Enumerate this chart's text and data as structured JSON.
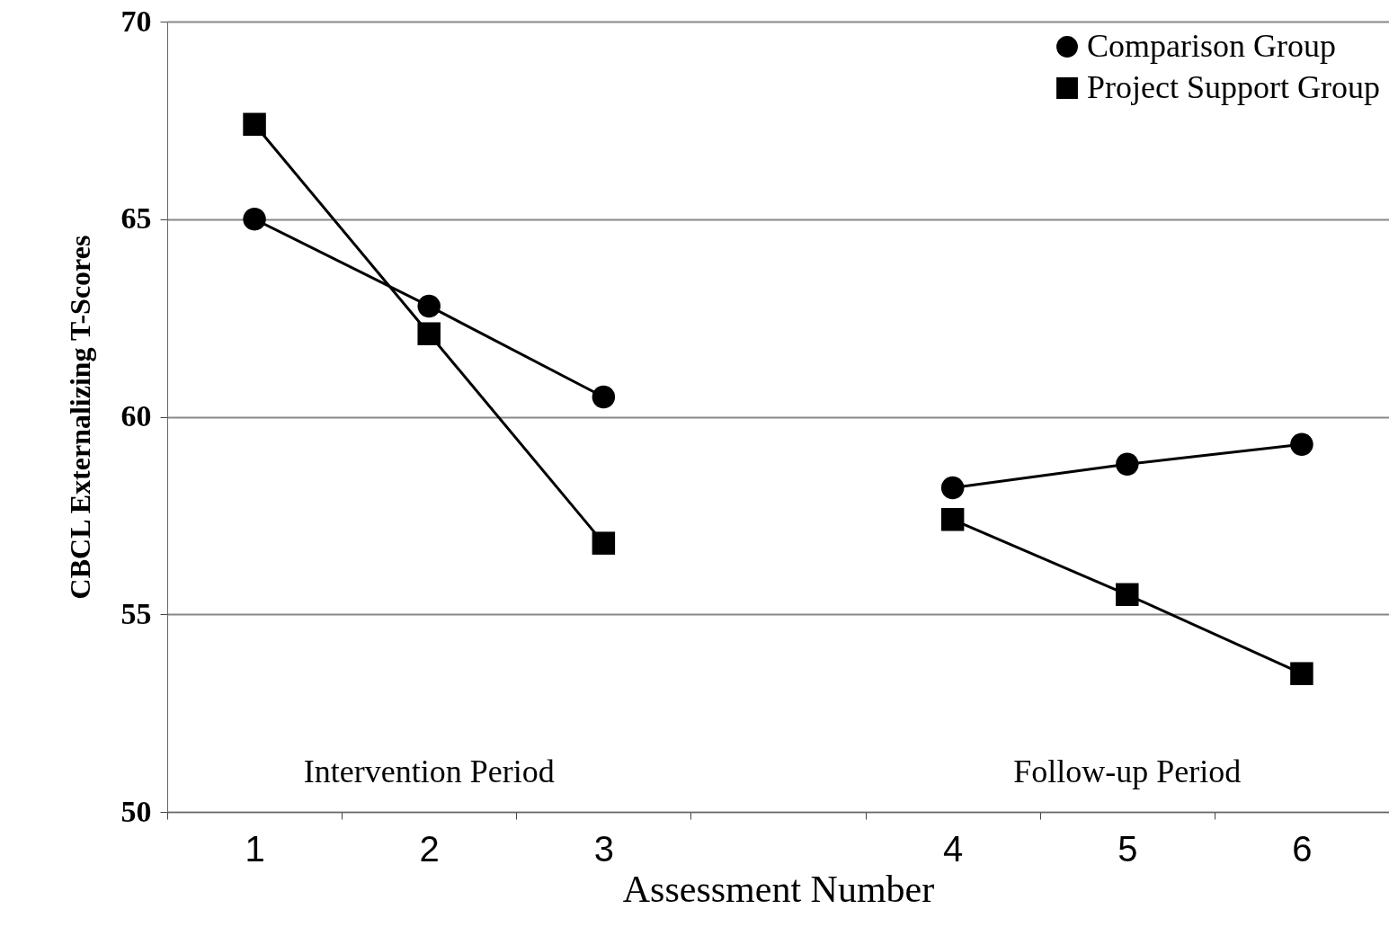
{
  "chart_data": {
    "type": "line",
    "xlabel": "Assessment Number",
    "ylabel": "CBCL Externalizing T-Scores",
    "categories": [
      "1",
      "2",
      "3",
      null,
      "4",
      "5",
      "6"
    ],
    "series": [
      {
        "name": "Comparison Group",
        "color": "#000000",
        "marker": "circle",
        "values": [
          65,
          62.8,
          60.5,
          null,
          58.2,
          58.8,
          59.3
        ]
      },
      {
        "name": "Project Support Group",
        "color": "#000000",
        "marker": "square",
        "values": [
          67.4,
          62.1,
          56.8,
          null,
          57.4,
          55.5,
          53.5
        ]
      }
    ],
    "ylim": [
      50,
      70
    ],
    "yticks": [
      50,
      55,
      60,
      65,
      70
    ],
    "grid": "y",
    "legend": "top right",
    "annotations": [
      "Intervention Period",
      "Follow-up Period"
    ]
  }
}
